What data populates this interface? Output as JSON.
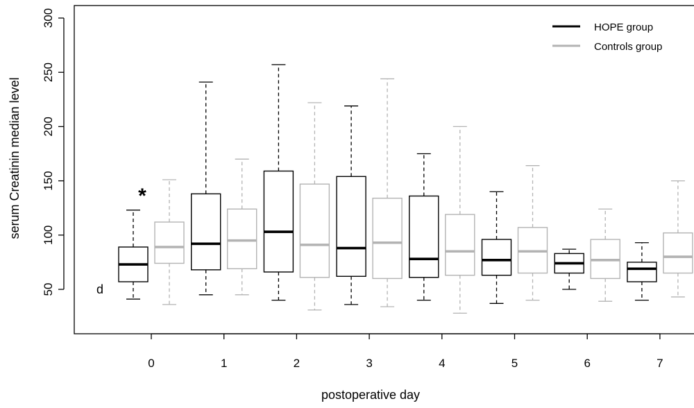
{
  "chart_data": {
    "type": "boxplot",
    "xlabel": "postoperative day",
    "ylabel": "serum Creatinin median level",
    "ylim": [
      50,
      300
    ],
    "yticks": [
      50,
      100,
      150,
      200,
      250,
      300
    ],
    "categories": [
      "0",
      "1",
      "2",
      "3",
      "4",
      "5",
      "6",
      "7"
    ],
    "legend": {
      "position": "top-right"
    },
    "annotations": {
      "significance": "*",
      "panel_letter": "d"
    },
    "series": [
      {
        "name": "HOPE group",
        "color": "#000000",
        "boxes": [
          {
            "day": "0",
            "whisker_low": 41,
            "q1": 57,
            "median": 73,
            "q3": 89,
            "whisker_high": 123
          },
          {
            "day": "1",
            "whisker_low": 45,
            "q1": 68,
            "median": 92,
            "q3": 138,
            "whisker_high": 241
          },
          {
            "day": "2",
            "whisker_low": 40,
            "q1": 66,
            "median": 103,
            "q3": 159,
            "whisker_high": 257
          },
          {
            "day": "3",
            "whisker_low": 36,
            "q1": 62,
            "median": 88,
            "q3": 154,
            "whisker_high": 219
          },
          {
            "day": "4",
            "whisker_low": 40,
            "q1": 61,
            "median": 78,
            "q3": 136,
            "whisker_high": 175
          },
          {
            "day": "5",
            "whisker_low": 37,
            "q1": 63,
            "median": 77,
            "q3": 96,
            "whisker_high": 140
          },
          {
            "day": "6",
            "whisker_low": 50,
            "q1": 65,
            "median": 74,
            "q3": 83,
            "whisker_high": 87
          },
          {
            "day": "7",
            "whisker_low": 40,
            "q1": 57,
            "median": 69,
            "q3": 75,
            "whisker_high": 93
          }
        ]
      },
      {
        "name": "Controls group",
        "color": "#b3b3b3",
        "boxes": [
          {
            "day": "0",
            "whisker_low": 36,
            "q1": 74,
            "median": 89,
            "q3": 112,
            "whisker_high": 151
          },
          {
            "day": "1",
            "whisker_low": 45,
            "q1": 69,
            "median": 95,
            "q3": 124,
            "whisker_high": 170
          },
          {
            "day": "2",
            "whisker_low": 31,
            "q1": 61,
            "median": 91,
            "q3": 147,
            "whisker_high": 222
          },
          {
            "day": "3",
            "whisker_low": 34,
            "q1": 60,
            "median": 93,
            "q3": 134,
            "whisker_high": 244
          },
          {
            "day": "4",
            "whisker_low": 28,
            "q1": 63,
            "median": 85,
            "q3": 119,
            "whisker_high": 200
          },
          {
            "day": "5",
            "whisker_low": 40,
            "q1": 65,
            "median": 85,
            "q3": 107,
            "whisker_high": 164
          },
          {
            "day": "6",
            "whisker_low": 39,
            "q1": 60,
            "median": 77,
            "q3": 96,
            "whisker_high": 124
          },
          {
            "day": "7",
            "whisker_low": 43,
            "q1": 65,
            "median": 80,
            "q3": 102,
            "whisker_high": 150
          }
        ]
      }
    ]
  }
}
